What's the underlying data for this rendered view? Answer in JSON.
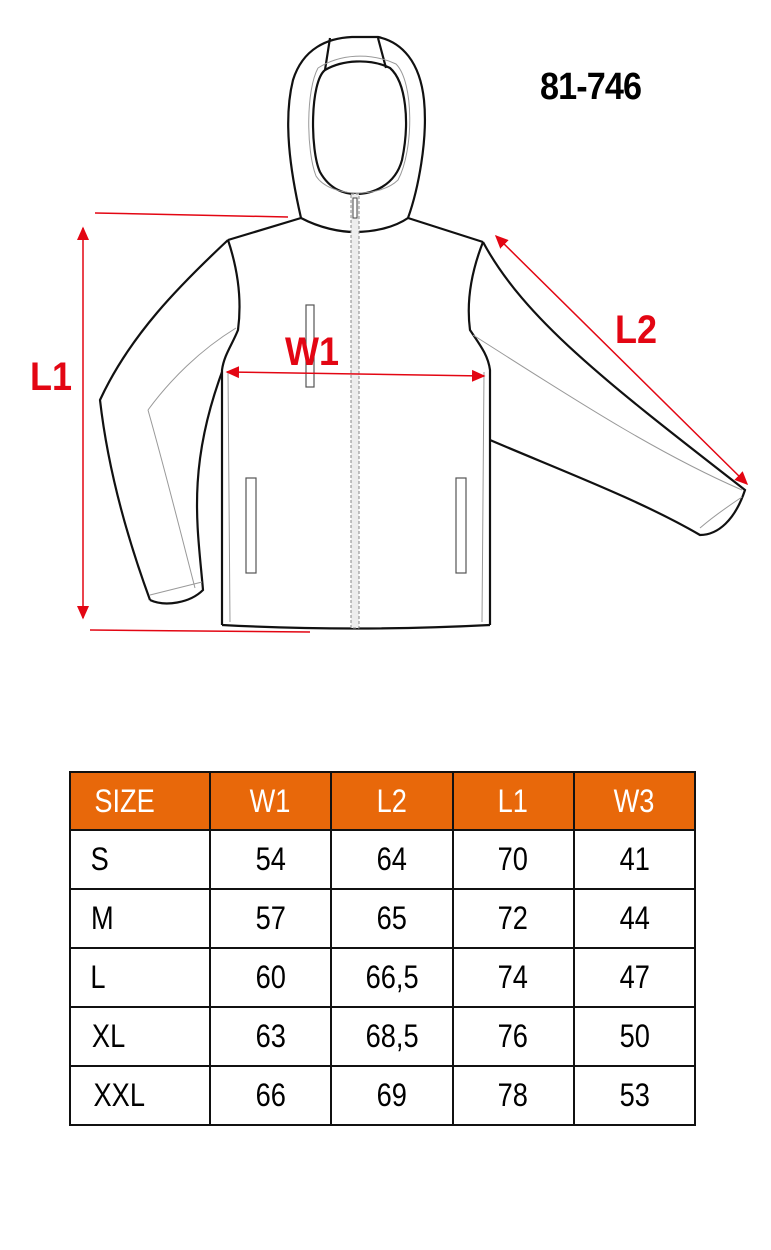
{
  "product_code": "81-746",
  "labels": {
    "l1": "L1",
    "w1": "W1",
    "l2": "L2"
  },
  "colors": {
    "header": "#e8680a",
    "measure": "#e30613"
  },
  "table": {
    "headers": [
      "SIZE",
      "W1",
      "L2",
      "L1",
      "W3"
    ],
    "rows": [
      [
        "S",
        "54",
        "64",
        "70",
        "41"
      ],
      [
        "M",
        "57",
        "65",
        "72",
        "44"
      ],
      [
        "L",
        "60",
        "66,5",
        "74",
        "47"
      ],
      [
        "XL",
        "63",
        "68,5",
        "76",
        "50"
      ],
      [
        "XXL",
        "66",
        "69",
        "78",
        "53"
      ]
    ]
  }
}
